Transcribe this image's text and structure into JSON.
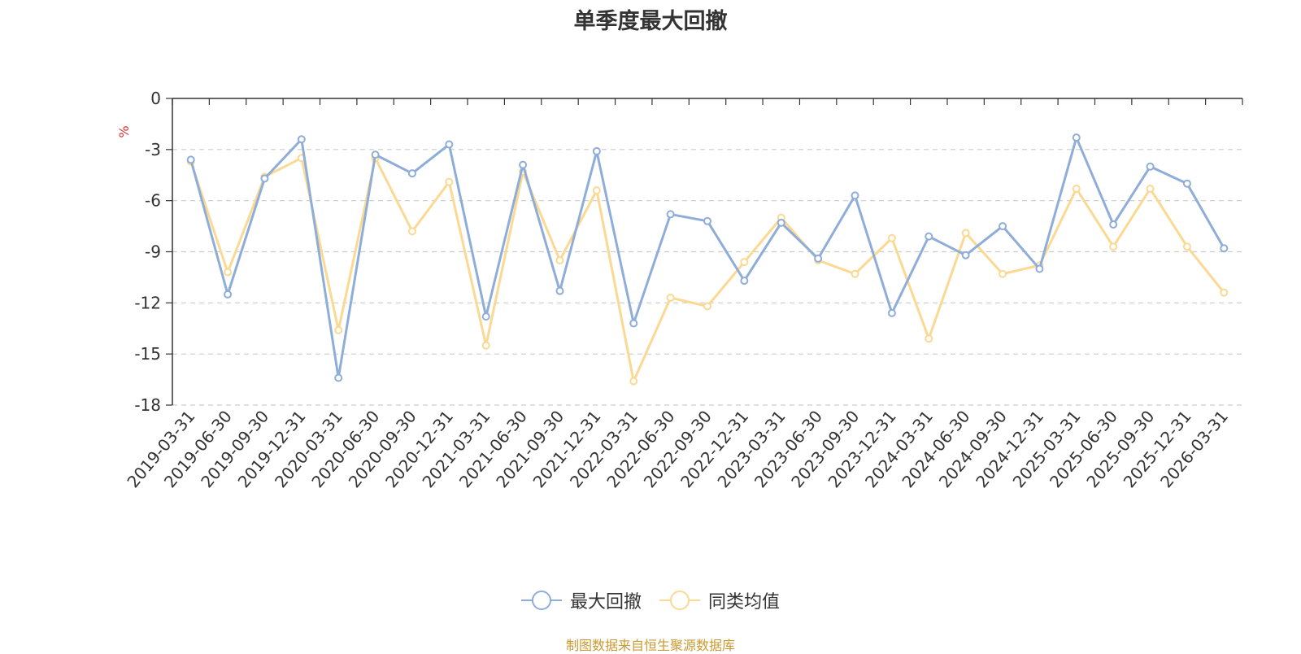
{
  "colors": {
    "series1": "#8eadd9",
    "series2": "#fbd993",
    "axis": "#333333",
    "grid": "#cccccc",
    "unit": "#e03030",
    "source": "#c99a32"
  },
  "chart_data": {
    "type": "line",
    "title": "单季度最大回撤",
    "ylabel": "%",
    "xlabel": "",
    "ylim": [
      -18,
      0
    ],
    "yticks": [
      0,
      -3,
      -6,
      -9,
      -12,
      -15,
      -18
    ],
    "grid": true,
    "legend_position": "bottom-center",
    "categories": [
      "2019-03-31",
      "2019-06-30",
      "2019-09-30",
      "2019-12-31",
      "2020-03-31",
      "2020-06-30",
      "2020-09-30",
      "2020-12-31",
      "2021-03-31",
      "2021-06-30",
      "2021-09-30",
      "2021-12-31",
      "2022-03-31",
      "2022-06-30",
      "2022-09-30",
      "2022-12-31",
      "2023-03-31",
      "2023-06-30",
      "2023-09-30",
      "2023-12-31",
      "2024-03-31",
      "2024-06-30",
      "2024-09-30",
      "2024-12-31",
      "2025-03-31",
      "2025-06-30",
      "2025-09-30",
      "2025-12-31",
      "2026-03-31"
    ],
    "series": [
      {
        "name": "最大回撤",
        "values": [
          -3.6,
          -11.5,
          -4.7,
          -2.4,
          -16.4,
          -3.3,
          -4.4,
          -2.7,
          -12.8,
          -3.9,
          -11.3,
          -3.1,
          -13.2,
          -6.8,
          -7.2,
          -10.7,
          -7.3,
          -9.4,
          -5.7,
          -12.6,
          -8.1,
          -9.2,
          -7.5,
          -10.0,
          -2.3,
          -7.4,
          -4.0,
          -5.0,
          -8.8
        ]
      },
      {
        "name": "同类均值",
        "values": [
          -3.7,
          -10.2,
          -4.6,
          -3.5,
          -13.6,
          -3.5,
          -7.8,
          -4.9,
          -14.5,
          -4.3,
          -9.5,
          -5.4,
          -16.6,
          -11.7,
          -12.2,
          -9.6,
          -7.0,
          -9.5,
          -10.3,
          -8.2,
          -14.1,
          -7.9,
          -10.3,
          -9.8,
          -5.3,
          -8.7,
          -5.3,
          -8.7,
          -11.4
        ]
      }
    ]
  },
  "source_text": "制图数据来自恒生聚源数据库"
}
